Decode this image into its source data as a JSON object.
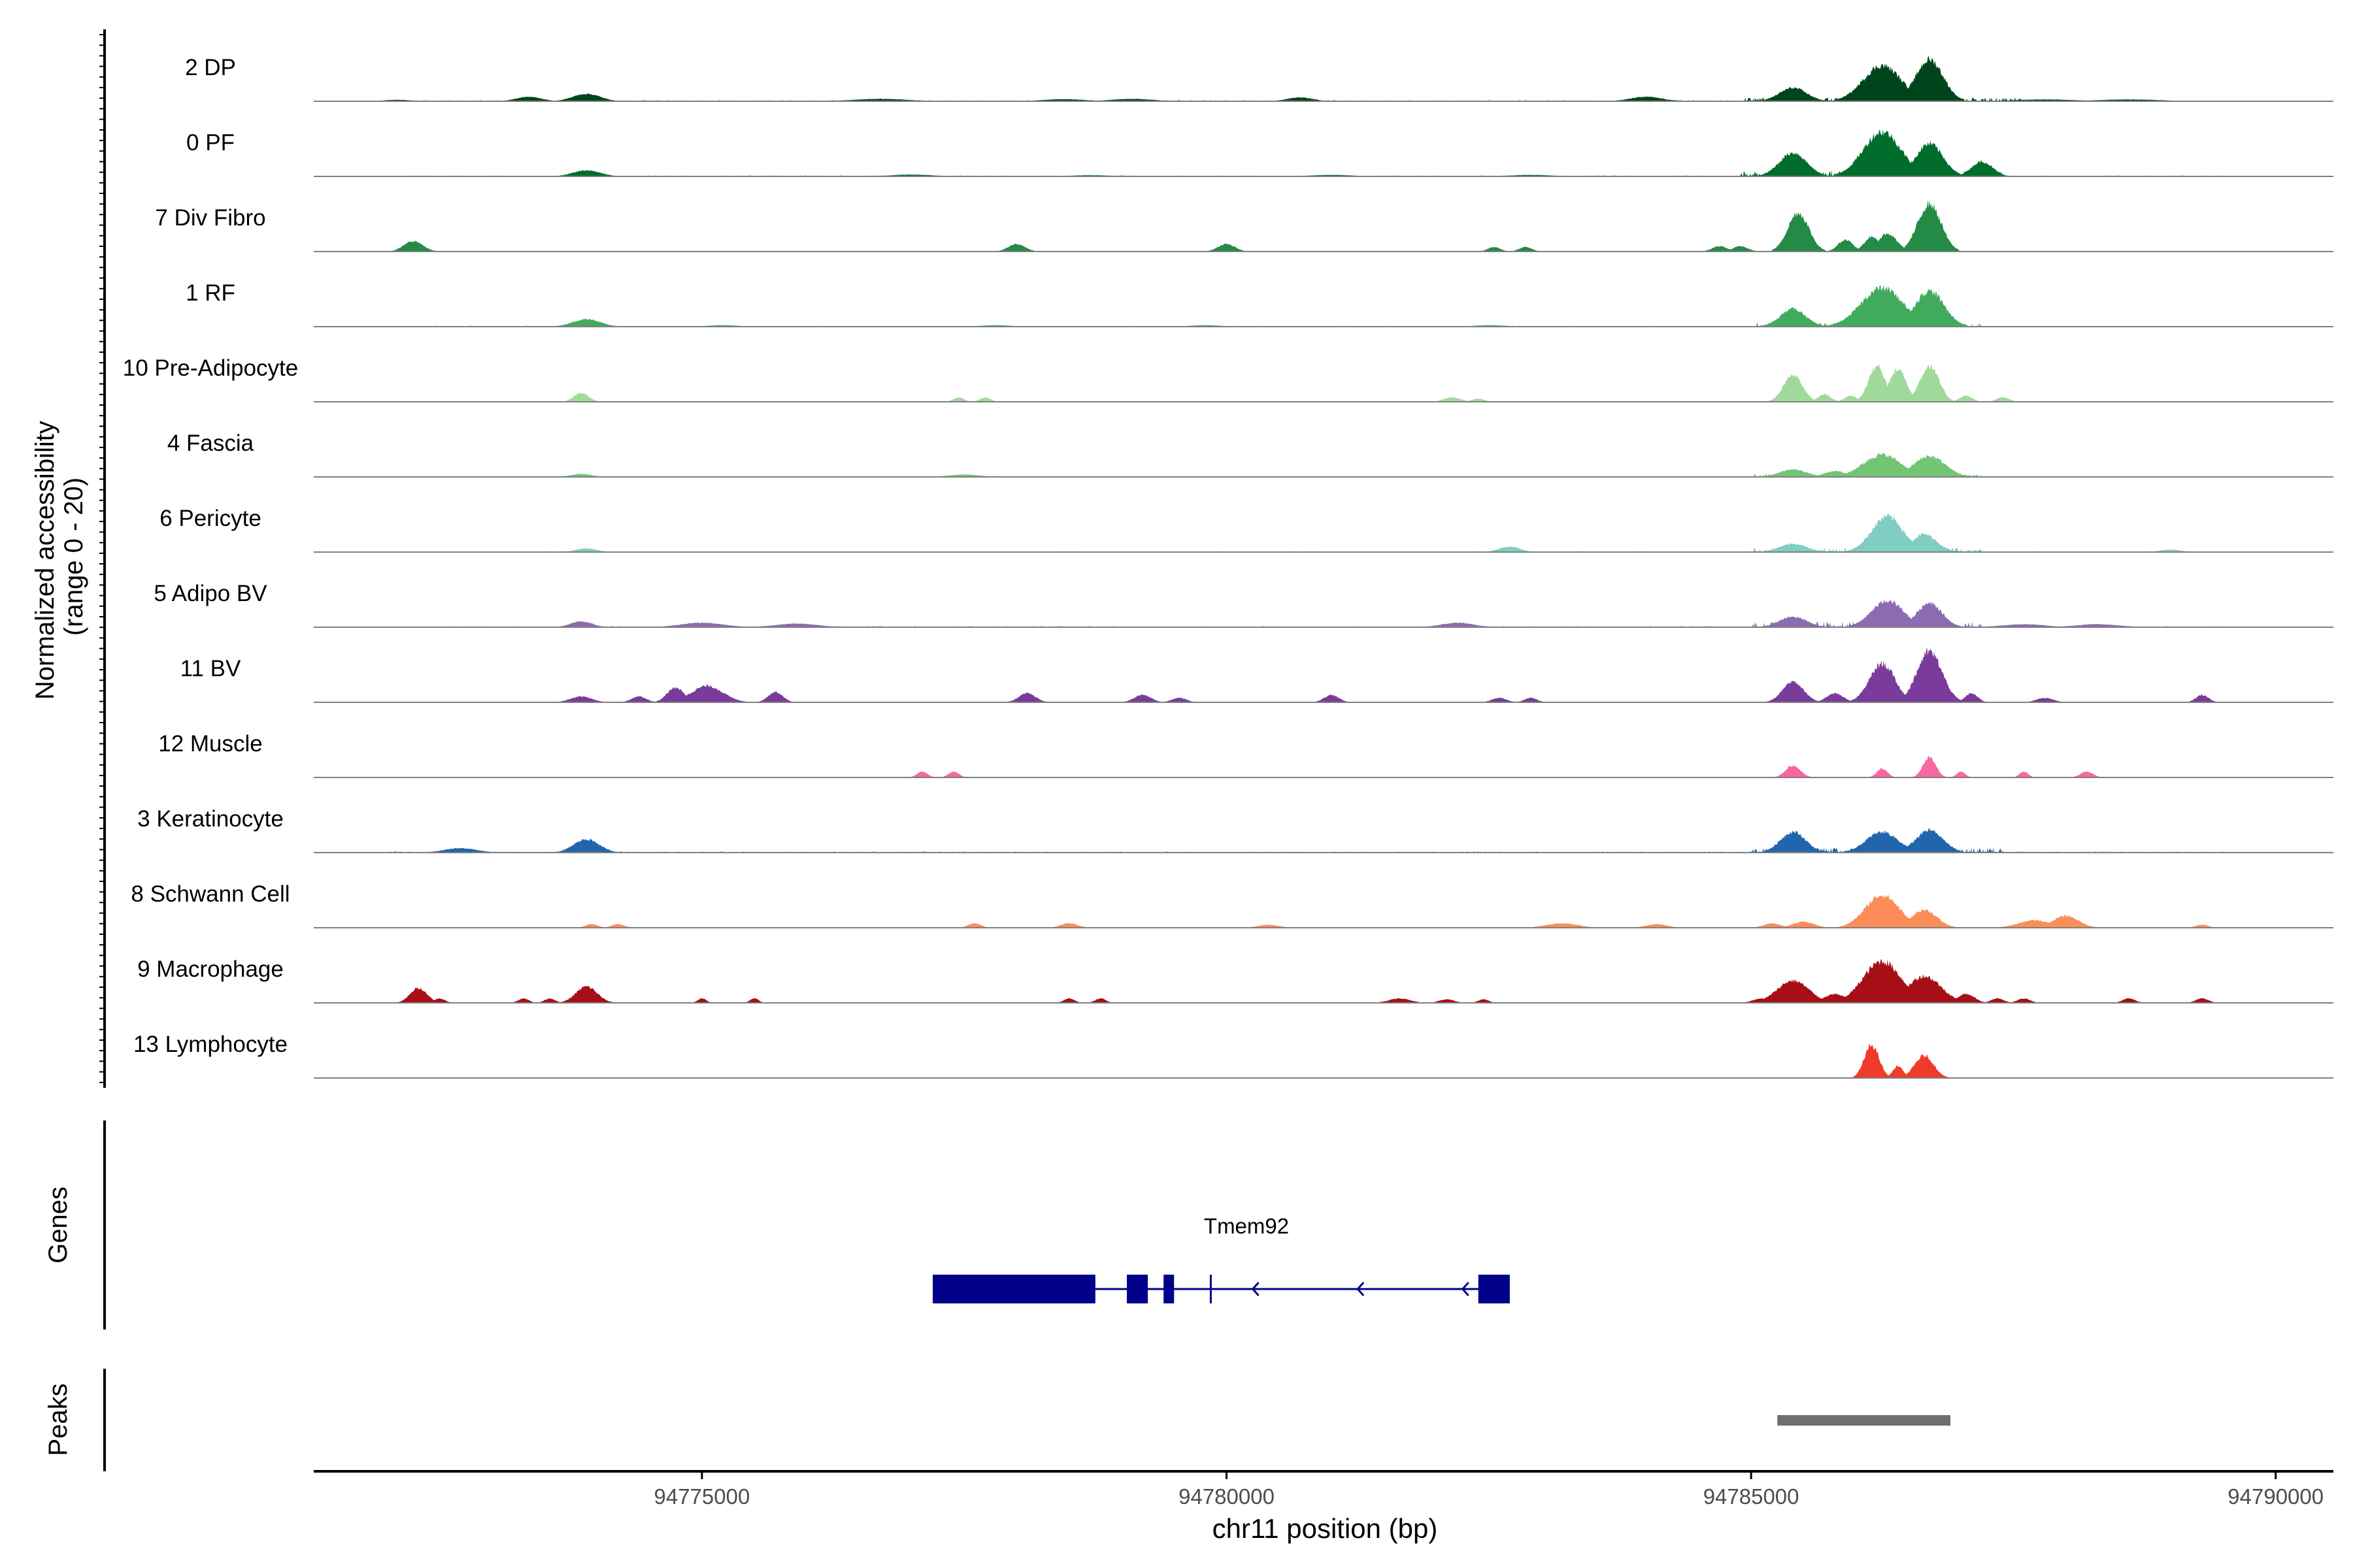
{
  "chart_data": {
    "type": "area",
    "title": "",
    "ylabel_line1": "Normalized accessibility",
    "ylabel_line2": "(range 0 - 20)",
    "xlabel": "chr11 position (bp)",
    "xlim": [
      94771300,
      94790550
    ],
    "ylim": [
      0,
      20
    ],
    "x_ticks": [
      94775000,
      94780000,
      94785000,
      94790000
    ],
    "x_tick_labels": [
      "94775000",
      "94780000",
      "94785000",
      "94790000"
    ],
    "grid": false,
    "tracks": [
      {
        "name": "2 DP",
        "color": "#00441b",
        "peaks": [
          [
            94772100,
            120,
            0.5
          ],
          [
            94773350,
            120,
            1.5
          ],
          [
            94773900,
            130,
            2.5
          ],
          [
            94776700,
            250,
            0.8
          ],
          [
            94778450,
            200,
            0.7
          ],
          [
            94779100,
            200,
            0.8
          ],
          [
            94780700,
            120,
            1.3
          ],
          [
            94784000,
            150,
            1.5
          ],
          [
            94785400,
            130,
            4.5
          ],
          [
            94786250,
            180,
            12
          ],
          [
            94786700,
            130,
            14
          ],
          [
            94787800,
            300,
            0.6
          ],
          [
            94788600,
            300,
            0.6
          ]
        ],
        "noise": [
          [
            94772000,
            94785000,
            0.35
          ],
          [
            94784900,
            94787600,
            1.2
          ],
          [
            94788000,
            94789000,
            0.3
          ]
        ]
      },
      {
        "name": "0 PF",
        "color": "#006d2c",
        "peaks": [
          [
            94773900,
            130,
            2
          ],
          [
            94777000,
            200,
            0.6
          ],
          [
            94778700,
            200,
            0.4
          ],
          [
            94781000,
            200,
            0.5
          ],
          [
            94782900,
            200,
            0.5
          ],
          [
            94785400,
            130,
            8
          ],
          [
            94786250,
            180,
            15
          ],
          [
            94786700,
            130,
            11
          ],
          [
            94787200,
            100,
            5
          ]
        ],
        "noise": [
          [
            94772200,
            94789600,
            0.3
          ],
          [
            94784900,
            94787400,
            1.8
          ]
        ]
      },
      {
        "name": "7 Div Fibro",
        "color": "#238b45",
        "peaks": [
          [
            94772250,
            90,
            3.5
          ],
          [
            94778000,
            80,
            2.5
          ],
          [
            94780000,
            80,
            2.5
          ],
          [
            94782550,
            60,
            1.5
          ],
          [
            94782850,
            60,
            1.5
          ],
          [
            94784700,
            70,
            1.8
          ],
          [
            94784900,
            70,
            1.8
          ],
          [
            94785450,
            100,
            13
          ],
          [
            94785900,
            70,
            4
          ],
          [
            94786150,
            70,
            5
          ],
          [
            94786300,
            90,
            6
          ],
          [
            94786700,
            110,
            16
          ]
        ],
        "noise": []
      },
      {
        "name": "1 RF",
        "color": "#41ab5d",
        "peaks": [
          [
            94773900,
            130,
            2.5
          ],
          [
            94775200,
            150,
            0.5
          ],
          [
            94777800,
            150,
            0.5
          ],
          [
            94779800,
            150,
            0.5
          ],
          [
            94782500,
            150,
            0.5
          ],
          [
            94785400,
            120,
            6
          ],
          [
            94786250,
            200,
            13
          ],
          [
            94786700,
            140,
            12
          ]
        ],
        "noise": [
          [
            94772000,
            94788000,
            0.3
          ],
          [
            94785000,
            94787200,
            1.5
          ]
        ]
      },
      {
        "name": "10 Pre-Adipocyte",
        "color": "#a1d99b",
        "peaks": [
          [
            94773850,
            70,
            3
          ],
          [
            94777450,
            50,
            1.5
          ],
          [
            94777700,
            50,
            1.5
          ],
          [
            94782150,
            80,
            1.5
          ],
          [
            94782400,
            60,
            1
          ],
          [
            94785400,
            90,
            9
          ],
          [
            94785700,
            60,
            2.5
          ],
          [
            94785950,
            60,
            2
          ],
          [
            94786200,
            80,
            12
          ],
          [
            94786400,
            80,
            11
          ],
          [
            94786700,
            90,
            12
          ],
          [
            94787050,
            60,
            2
          ],
          [
            94787400,
            60,
            1.5
          ]
        ],
        "noise": []
      },
      {
        "name": "4 Fascia",
        "color": "#74c476",
        "peaks": [
          [
            94773850,
            100,
            1
          ],
          [
            94777500,
            150,
            0.8
          ],
          [
            94785400,
            130,
            2.5
          ],
          [
            94785800,
            100,
            2
          ],
          [
            94786250,
            180,
            7.5
          ],
          [
            94786700,
            150,
            7
          ]
        ],
        "noise": [
          [
            94773500,
            94789500,
            0.25
          ],
          [
            94785000,
            94787200,
            1
          ]
        ]
      },
      {
        "name": "6 Pericyte",
        "color": "#80cdc1",
        "peaks": [
          [
            94773900,
            100,
            1.2
          ],
          [
            94782700,
            100,
            1.8
          ],
          [
            94785400,
            130,
            2.8
          ],
          [
            94786300,
            150,
            12
          ],
          [
            94786650,
            120,
            6
          ],
          [
            94789000,
            100,
            0.8
          ]
        ],
        "noise": [
          [
            94773500,
            94789500,
            0.25
          ],
          [
            94785000,
            94787200,
            1.3
          ]
        ]
      },
      {
        "name": "5 Adipo BV",
        "color": "#8c6bb1",
        "peaks": [
          [
            94773850,
            100,
            2
          ],
          [
            94775000,
            200,
            1.5
          ],
          [
            94775900,
            200,
            1.2
          ],
          [
            94782200,
            150,
            1.5
          ],
          [
            94785400,
            130,
            3.5
          ],
          [
            94786300,
            150,
            9
          ],
          [
            94786700,
            120,
            8
          ],
          [
            94787600,
            200,
            1
          ],
          [
            94788300,
            200,
            1
          ]
        ],
        "noise": [
          [
            94772000,
            94789600,
            0.35
          ],
          [
            94785000,
            94787200,
            1.8
          ]
        ]
      },
      {
        "name": "11 BV",
        "color": "#7a3b9a",
        "peaks": [
          [
            94773850,
            100,
            2
          ],
          [
            94774400,
            70,
            2
          ],
          [
            94774750,
            80,
            5
          ],
          [
            94775050,
            150,
            5.5
          ],
          [
            94775700,
            70,
            3.5
          ],
          [
            94778100,
            80,
            3
          ],
          [
            94779200,
            80,
            2.5
          ],
          [
            94779550,
            70,
            1.5
          ],
          [
            94781000,
            70,
            2.5
          ],
          [
            94782600,
            70,
            1.5
          ],
          [
            94782900,
            60,
            1.5
          ],
          [
            94785400,
            100,
            7
          ],
          [
            94785800,
            80,
            3
          ],
          [
            94786250,
            120,
            13
          ],
          [
            94786700,
            120,
            17
          ],
          [
            94787100,
            60,
            3
          ],
          [
            94787800,
            80,
            1.5
          ],
          [
            94789300,
            60,
            2.5
          ]
        ],
        "noise": []
      },
      {
        "name": "12 Muscle",
        "color": "#f768a1",
        "peaks": [
          [
            94777100,
            50,
            2
          ],
          [
            94777400,
            50,
            2
          ],
          [
            94785400,
            70,
            4
          ],
          [
            94786250,
            50,
            3
          ],
          [
            94786700,
            60,
            7
          ],
          [
            94787000,
            40,
            2
          ],
          [
            94787600,
            40,
            2
          ],
          [
            94788200,
            60,
            2
          ]
        ],
        "noise": []
      },
      {
        "name": "3 Keratinocyte",
        "color": "#2166ac",
        "peaks": [
          [
            94772700,
            150,
            1.5
          ],
          [
            94773900,
            120,
            4.5
          ],
          [
            94785400,
            120,
            7
          ],
          [
            94786250,
            150,
            7
          ],
          [
            94786700,
            130,
            7.5
          ]
        ],
        "noise": [
          [
            94772000,
            94789600,
            0.35
          ],
          [
            94785000,
            94787400,
            1.5
          ]
        ]
      },
      {
        "name": "8 Schwann Cell",
        "color": "#fc8d59",
        "peaks": [
          [
            94773950,
            60,
            1.2
          ],
          [
            94774200,
            60,
            1.2
          ],
          [
            94777600,
            60,
            1.5
          ],
          [
            94778500,
            80,
            1.5
          ],
          [
            94780400,
            100,
            1
          ],
          [
            94783200,
            150,
            1.5
          ],
          [
            94784100,
            100,
            1.2
          ],
          [
            94785200,
            80,
            1.5
          ],
          [
            94785500,
            100,
            2
          ],
          [
            94786250,
            160,
            11
          ],
          [
            94786650,
            120,
            6
          ],
          [
            94787700,
            150,
            2.5
          ],
          [
            94788000,
            120,
            4
          ],
          [
            94789300,
            60,
            1
          ]
        ],
        "noise": []
      },
      {
        "name": "9 Macrophage",
        "color": "#a50f15",
        "peaks": [
          [
            94772300,
            80,
            5
          ],
          [
            94772500,
            50,
            1.5
          ],
          [
            94773300,
            50,
            1.5
          ],
          [
            94773550,
            50,
            1.5
          ],
          [
            94773900,
            100,
            5.5
          ],
          [
            94775000,
            40,
            1.5
          ],
          [
            94775500,
            40,
            1.5
          ],
          [
            94778500,
            50,
            1.5
          ],
          [
            94778800,
            50,
            1.5
          ],
          [
            94781650,
            100,
            1.5
          ],
          [
            94782100,
            70,
            1.2
          ],
          [
            94782450,
            50,
            1.2
          ],
          [
            94785100,
            80,
            1.5
          ],
          [
            94785400,
            150,
            7.5
          ],
          [
            94785800,
            100,
            3
          ],
          [
            94786250,
            180,
            14
          ],
          [
            94786650,
            160,
            9
          ],
          [
            94787050,
            80,
            3
          ],
          [
            94787350,
            60,
            1.5
          ],
          [
            94787600,
            60,
            1.5
          ],
          [
            94788600,
            60,
            1.5
          ],
          [
            94789300,
            60,
            1.5
          ]
        ],
        "noise": []
      },
      {
        "name": "13 Lymphocyte",
        "color": "#ef3b2c",
        "peaks": [
          [
            94786150,
            70,
            11
          ],
          [
            94786400,
            50,
            4
          ],
          [
            94786650,
            90,
            7.5
          ]
        ],
        "noise": []
      }
    ],
    "genes_label": "Genes",
    "gene": {
      "name": "Tmem92",
      "color": "#00008b",
      "strand": "-",
      "start": 94777200,
      "end": 94782700,
      "exons": [
        [
          94777200,
          94778750
        ],
        [
          94779050,
          94779250
        ],
        [
          94779400,
          94779500
        ],
        [
          94782400,
          94782700
        ]
      ],
      "tss": 94779850,
      "arrows": [
        94780250,
        94781250,
        94782250
      ]
    },
    "peaks_label": "Peaks",
    "peak_regions": [
      [
        94785250,
        94786900
      ]
    ],
    "peak_color": "#6e6e6e"
  }
}
